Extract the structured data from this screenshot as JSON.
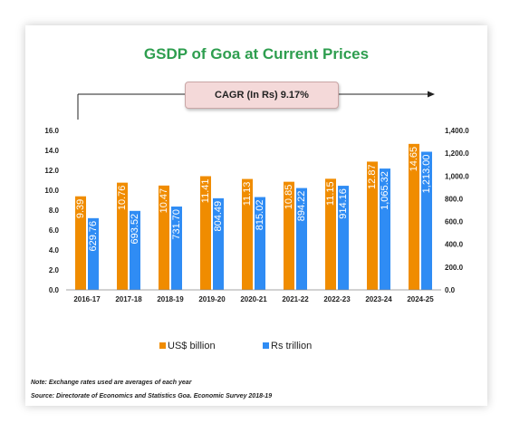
{
  "chart_data": {
    "type": "bar",
    "title": "GSDP of Goa at Current Prices",
    "annotation": "CAGR (In Rs) 9.17%",
    "categories": [
      "2016-17",
      "2017-18",
      "2018-19",
      "2019-20",
      "2020-21",
      "2021-22",
      "2022-23",
      "2023-24",
      "2024-25"
    ],
    "series": [
      {
        "name": "US$ billion",
        "axis": "left",
        "color": "#f08c00",
        "values": [
          9.39,
          10.76,
          10.47,
          11.41,
          11.13,
          10.85,
          11.15,
          12.87,
          14.65
        ],
        "labels": [
          "9.39",
          "10.76",
          "10.47",
          "11.41",
          "11.13",
          "10.85",
          "11.15",
          "12.87",
          "14.65"
        ]
      },
      {
        "name": "Rs trillion",
        "axis": "right",
        "color": "#2f8cf4",
        "values": [
          629.76,
          693.52,
          731.7,
          804.49,
          815.02,
          894.22,
          914.16,
          1065.32,
          1213.0
        ],
        "labels": [
          "629.76",
          "693.52",
          "731.70",
          "804.49",
          "815.02",
          "894.22",
          "914.16",
          "1,065.32",
          "1,213.00"
        ]
      }
    ],
    "y_left": {
      "min": 0,
      "max": 16,
      "ticks": [
        "0.0",
        "2.0",
        "4.0",
        "6.0",
        "8.0",
        "10.0",
        "12.0",
        "14.0",
        "16.0"
      ]
    },
    "y_right": {
      "min": 0,
      "max": 1400,
      "ticks": [
        "0.0",
        "200.0",
        "400.0",
        "600.0",
        "800.0",
        "1,000.0",
        "1,200.0",
        "1,400.0"
      ]
    },
    "grid": false,
    "legend_position": "bottom"
  },
  "notes": {
    "note": "Note: Exchange rates used are averages of each year",
    "source": "Source: Directorate of Economics and Statistics Goa. Economic Survey 2018-19"
  }
}
